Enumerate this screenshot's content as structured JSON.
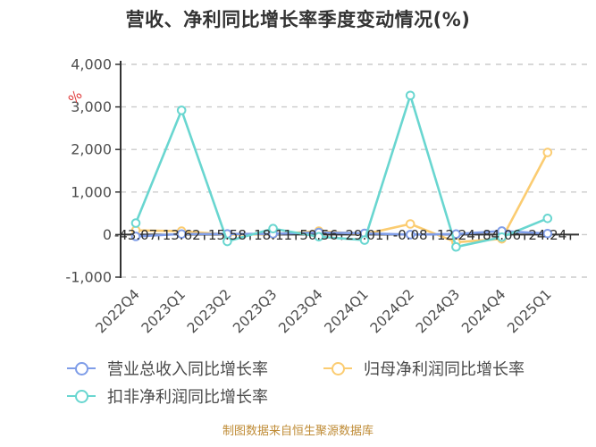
{
  "title": "营收、净利同比增长率季度变动情况(%)",
  "source_note": "制图数据来自恒生聚源数据库",
  "colors": {
    "revenue_series": "#7f9de8",
    "net_profit_series": "#fbcc71",
    "deducted_profit_series": "#69d6d0",
    "axis_line": "#333333",
    "grid_line": "#cccccc",
    "axis_label": "#4e4e4e",
    "data_label": "#2e2e2e",
    "y_unit": "#e03c3c",
    "title_text": "#333333",
    "source_text": "#bf8b35"
  },
  "y_axis_unit": "%",
  "legend": {
    "rows": [
      [
        0,
        1
      ],
      [
        2
      ]
    ],
    "items": [
      {
        "label": "营业总收入同比增长率",
        "color": "#7f9de8"
      },
      {
        "label": "归母净利润同比增长率",
        "color": "#fbcc71"
      },
      {
        "label": "扣非净利润同比增长率",
        "color": "#69d6d0"
      }
    ]
  },
  "chart_data": {
    "type": "line",
    "title": "营收、净利同比增长率季度变动情况(%)",
    "xlabel": "",
    "ylabel": "%",
    "ylim": [
      -1000,
      4000
    ],
    "grid": "horizontal dashed",
    "legend_position": "bottom-left two rows",
    "categories": [
      "2022Q4",
      "2023Q1",
      "2023Q2",
      "2023Q3",
      "2023Q4",
      "2024Q1",
      "2024Q2",
      "2024Q3",
      "2024Q4",
      "2025Q1"
    ],
    "y_ticks": [
      {
        "value": 4000,
        "label": "4,000"
      },
      {
        "value": 3000,
        "label": "3,000"
      },
      {
        "value": 2000,
        "label": "2,000"
      },
      {
        "value": 1000,
        "label": "1,000"
      },
      {
        "value": 0,
        "label": "0"
      },
      {
        "value": -1000,
        "label": "-1,000"
      }
    ],
    "series": [
      {
        "name": "归母净利润同比增长率",
        "color": "#fbcc71",
        "values": [
          100,
          80,
          0,
          10,
          80,
          10,
          250,
          -180,
          -100,
          1930
        ]
      },
      {
        "name": "营业总收入同比增长率",
        "color": "#7f9de8",
        "values": [
          -43.07,
          13.62,
          15.58,
          18.11,
          50.56,
          29.01,
          -0.08,
          12.24,
          84.06,
          24.24
        ],
        "labels": [
          "-43.07",
          "13.62",
          "15.58",
          "18.11",
          "50.56",
          "29.01",
          "-0.08",
          "12.24",
          "84.06",
          "24.24"
        ]
      },
      {
        "name": "扣非净利润同比增长率",
        "color": "#69d6d0",
        "values": [
          270,
          2920,
          -160,
          140,
          -50,
          -130,
          3270,
          -290,
          -60,
          380
        ]
      }
    ]
  }
}
